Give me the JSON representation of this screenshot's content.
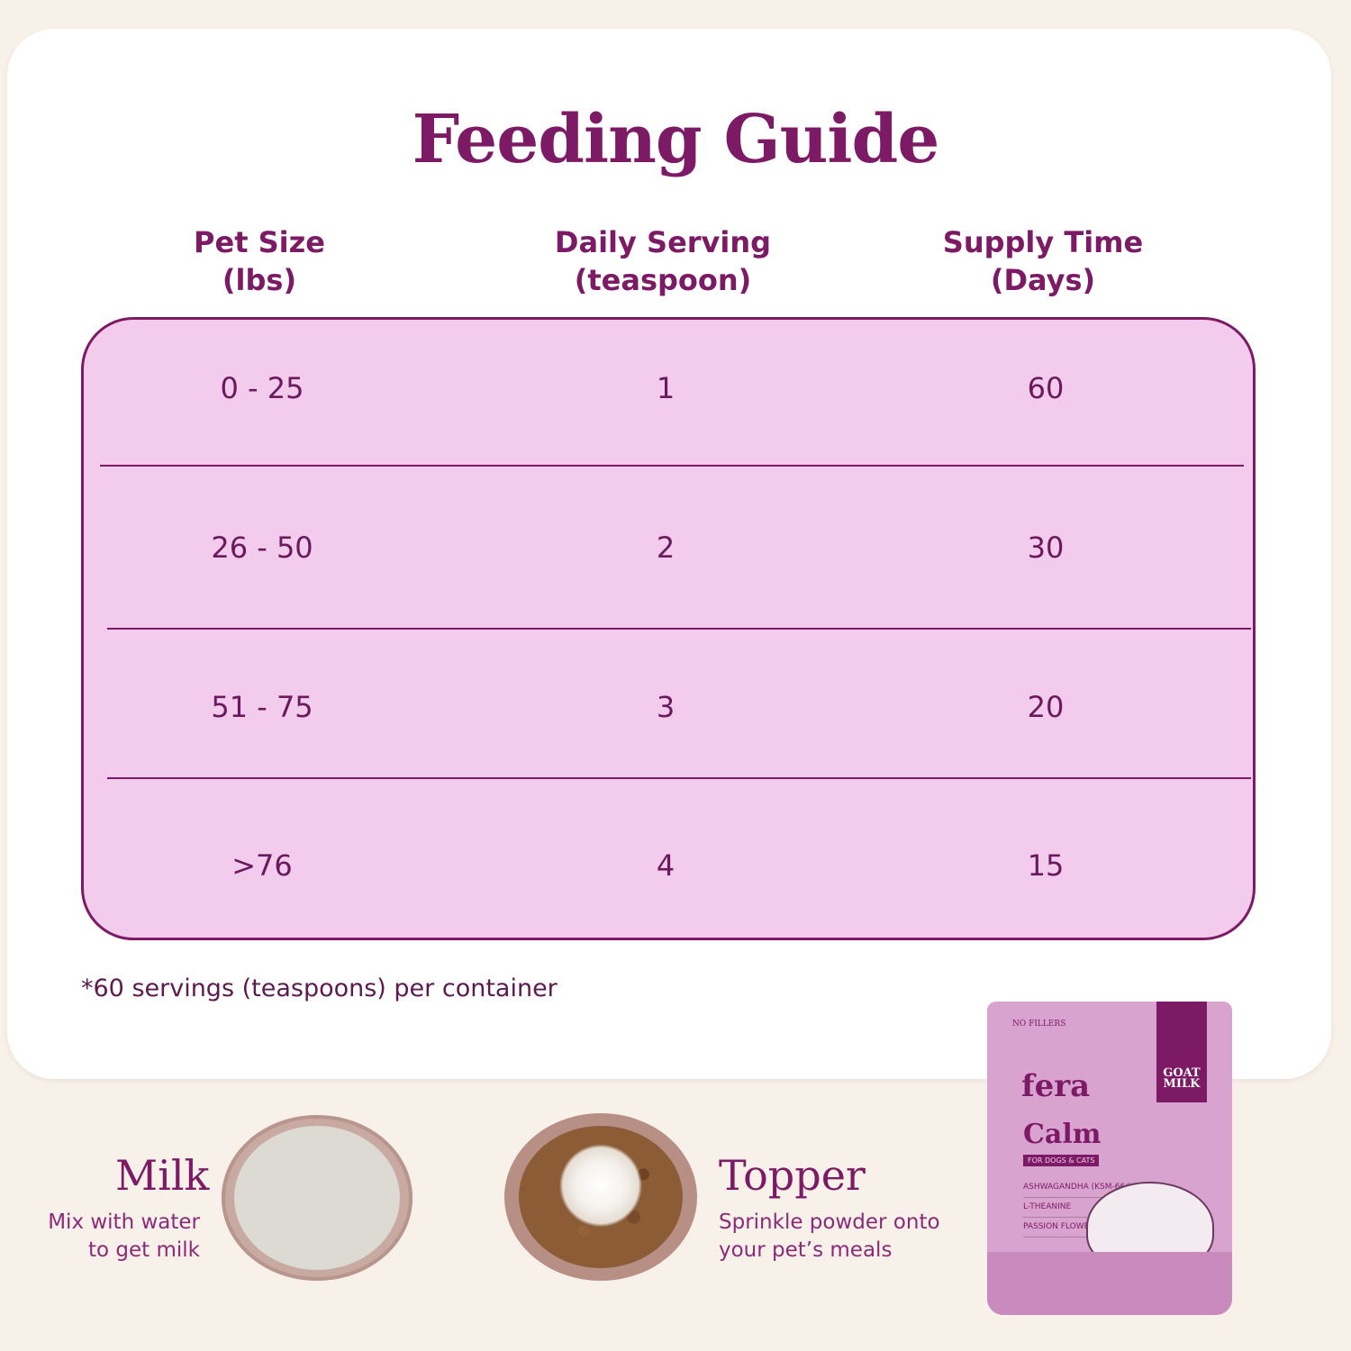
{
  "title": "Feeding Guide",
  "columns": [
    {
      "line1": "Pet Size",
      "line2": "(lbs)"
    },
    {
      "line1": "Daily Serving",
      "line2": "(teaspoon)"
    },
    {
      "line1": "Supply Time",
      "line2": "(Days)"
    }
  ],
  "rows": [
    {
      "size": "0 - 25",
      "serving": "1",
      "days": "60"
    },
    {
      "size": "26 - 50",
      "serving": "2",
      "days": "30"
    },
    {
      "size": "51 - 75",
      "serving": "3",
      "days": "20"
    },
    {
      "size": ">76",
      "serving": "4",
      "days": "15"
    }
  ],
  "note": "*60 servings (teaspoons) per container",
  "milk": {
    "title": "Milk",
    "desc_line1": "Mix with water",
    "desc_line2": "to get milk"
  },
  "topper": {
    "title": "Topper",
    "desc_line1": "Sprinkle powder onto",
    "desc_line2": "your pet’s meals"
  },
  "pouch": {
    "tag": "NO FILLERS",
    "brand": "fera",
    "name": "Calm",
    "sub": "FOR DOGS & CATS",
    "goat": "GOAT MILK",
    "ingredients": [
      "ASHWAGANDHA (KSM-66®)",
      "L-THEANINE",
      "PASSION FLOWER"
    ]
  },
  "colors": {
    "accent": "#7c1a66",
    "table_bg": "#f2cbed",
    "page_bg": "#f8f1e9"
  }
}
